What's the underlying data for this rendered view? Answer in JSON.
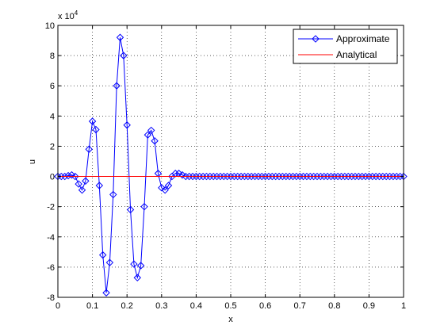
{
  "chart_data": {
    "type": "line",
    "title": "",
    "xlabel": "x",
    "ylabel": "u",
    "xlim": [
      0,
      1
    ],
    "ylim": [
      -80000,
      100000
    ],
    "y_exponent_label": "x 10",
    "y_exponent_power": "4",
    "xticks": [
      "0",
      "0.1",
      "0.2",
      "0.3",
      "0.4",
      "0.5",
      "0.6",
      "0.7",
      "0.8",
      "0.9",
      "1"
    ],
    "yticks": [
      "-8",
      "-6",
      "-4",
      "-2",
      "0",
      "2",
      "4",
      "6",
      "8",
      "10"
    ],
    "grid": true,
    "legend_position": "top-right",
    "series": [
      {
        "name": "Approximate",
        "color": "#0000ff",
        "marker": "diamond",
        "x": [
          0,
          0.01,
          0.02,
          0.03,
          0.04,
          0.05,
          0.06,
          0.07,
          0.08,
          0.09,
          0.1,
          0.11,
          0.12,
          0.13,
          0.14,
          0.15,
          0.16,
          0.17,
          0.18,
          0.19,
          0.2,
          0.21,
          0.22,
          0.23,
          0.24,
          0.25,
          0.26,
          0.27,
          0.28,
          0.29,
          0.3,
          0.31,
          0.32,
          0.33,
          0.34,
          0.35,
          0.36,
          0.37,
          0.38,
          0.39,
          0.4,
          0.41,
          0.42,
          0.43,
          0.44,
          0.45,
          0.46,
          0.47,
          0.48,
          0.49,
          0.5,
          0.51,
          0.52,
          0.53,
          0.54,
          0.55,
          0.56,
          0.57,
          0.58,
          0.59,
          0.6,
          0.61,
          0.62,
          0.63,
          0.64,
          0.65,
          0.66,
          0.67,
          0.68,
          0.69,
          0.7,
          0.71,
          0.72,
          0.73,
          0.74,
          0.75,
          0.76,
          0.77,
          0.78,
          0.79,
          0.8,
          0.81,
          0.82,
          0.83,
          0.84,
          0.85,
          0.86,
          0.87,
          0.88,
          0.89,
          0.9,
          0.91,
          0.92,
          0.93,
          0.94,
          0.95,
          0.96,
          0.97,
          0.98,
          0.99,
          1
        ],
        "y": [
          0,
          0,
          0,
          500,
          1000,
          0,
          -5000,
          -9000,
          -3000,
          18000,
          36500,
          31000,
          -6000,
          -52000,
          -77000,
          -57000,
          -12000,
          60000,
          92000,
          80000,
          34000,
          -22000,
          -58000,
          -67000,
          -59000,
          -20000,
          27500,
          30500,
          23500,
          2000,
          -7500,
          -9000,
          -6000,
          0,
          2000,
          2000,
          1000,
          0,
          0,
          0,
          0,
          0,
          0,
          0,
          0,
          0,
          0,
          0,
          0,
          0,
          0,
          0,
          0,
          0,
          0,
          0,
          0,
          0,
          0,
          0,
          0,
          0,
          0,
          0,
          0,
          0,
          0,
          0,
          0,
          0,
          0,
          0,
          0,
          0,
          0,
          0,
          0,
          0,
          0,
          0,
          0,
          0,
          0,
          0,
          0,
          0,
          0,
          0,
          0,
          0,
          0,
          0,
          0,
          0,
          0,
          0,
          0,
          0,
          0,
          0,
          0
        ]
      },
      {
        "name": "Analytical",
        "color": "#ff0000",
        "marker": "none",
        "x": [
          0,
          1
        ],
        "y": [
          0,
          0
        ]
      }
    ]
  }
}
